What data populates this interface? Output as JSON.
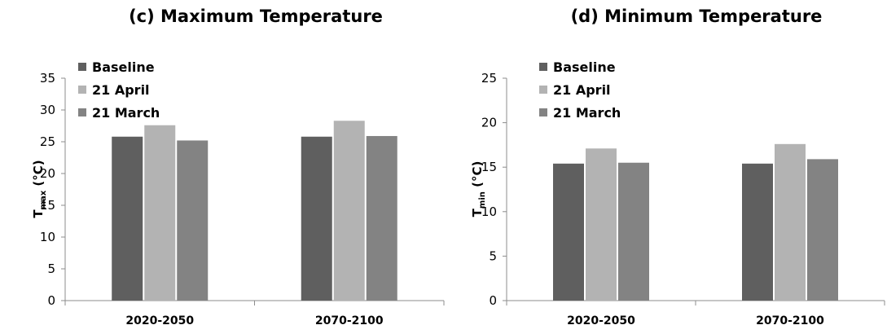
{
  "chart_data": [
    {
      "type": "bar",
      "title": "(c) Maximum Temperature",
      "ylabel": {
        "main": "T",
        "sub": "max",
        "unit": " (°C)"
      },
      "ylim": [
        0,
        35
      ],
      "yticks": [
        "0",
        "5",
        "10",
        "15",
        "20",
        "25",
        "30",
        "35"
      ],
      "grid": false,
      "legend_position": "top-left",
      "categories": [
        "2020-2050",
        "2070-2100"
      ],
      "series": [
        {
          "name": "Baseline",
          "color": "#5f5f5f",
          "values": [
            25.8,
            25.8
          ]
        },
        {
          "name": "21 April",
          "color": "#b3b3b3",
          "values": [
            27.6,
            28.3
          ]
        },
        {
          "name": "21 March",
          "color": "#838383",
          "values": [
            25.2,
            25.9
          ]
        }
      ]
    },
    {
      "type": "bar",
      "title": "(d) Minimum Temperature",
      "ylabel": {
        "main": "T",
        "sub": "min",
        "unit": " (°C)"
      },
      "ylim": [
        0,
        25
      ],
      "yticks": [
        "0",
        "5",
        "10",
        "15",
        "20",
        "25"
      ],
      "grid": false,
      "legend_position": "top-left",
      "categories": [
        "2020-2050",
        "2070-2100"
      ],
      "series": [
        {
          "name": "Baseline",
          "color": "#5f5f5f",
          "values": [
            15.4,
            15.4
          ]
        },
        {
          "name": "21 April",
          "color": "#b3b3b3",
          "values": [
            17.1,
            17.6
          ]
        },
        {
          "name": "21 March",
          "color": "#838383",
          "values": [
            15.5,
            15.9
          ]
        }
      ]
    }
  ]
}
